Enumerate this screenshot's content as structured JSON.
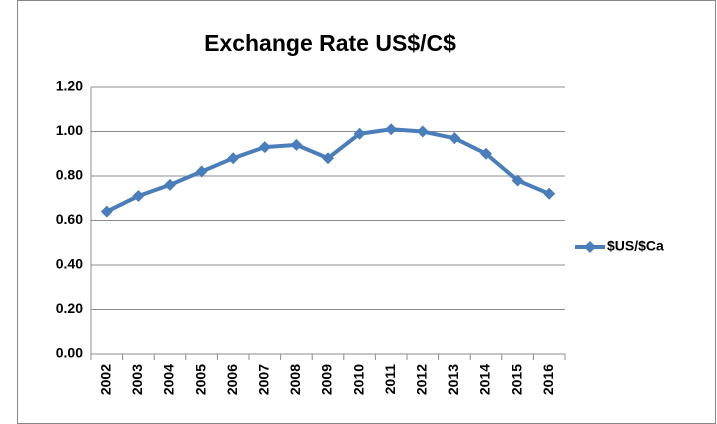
{
  "chart_data": {
    "type": "line",
    "title": "Exchange Rate US$/C$",
    "categories": [
      "2002",
      "2003",
      "2004",
      "2005",
      "2006",
      "2007",
      "2008",
      "2009",
      "2010",
      "2011",
      "2012",
      "2013",
      "2014",
      "2015",
      "2016"
    ],
    "series": [
      {
        "name": "$US/$Ca",
        "color": "#4a7ebb",
        "values": [
          0.64,
          0.71,
          0.76,
          0.82,
          0.88,
          0.93,
          0.94,
          0.88,
          0.99,
          1.01,
          1.0,
          0.97,
          0.9,
          0.78,
          0.72
        ]
      }
    ],
    "ylim": [
      0,
      1.2
    ],
    "yticks": [
      {
        "value": 0,
        "label": "0.00"
      },
      {
        "value": 0.2,
        "label": "0.20"
      },
      {
        "value": 0.4,
        "label": "0.40"
      },
      {
        "value": 0.6,
        "label": "0.60"
      },
      {
        "value": 0.8,
        "label": "0.80"
      },
      {
        "value": 1.0,
        "label": "1.00"
      },
      {
        "value": 1.2,
        "label": "1.20"
      }
    ],
    "grid": true,
    "legend": "right"
  }
}
